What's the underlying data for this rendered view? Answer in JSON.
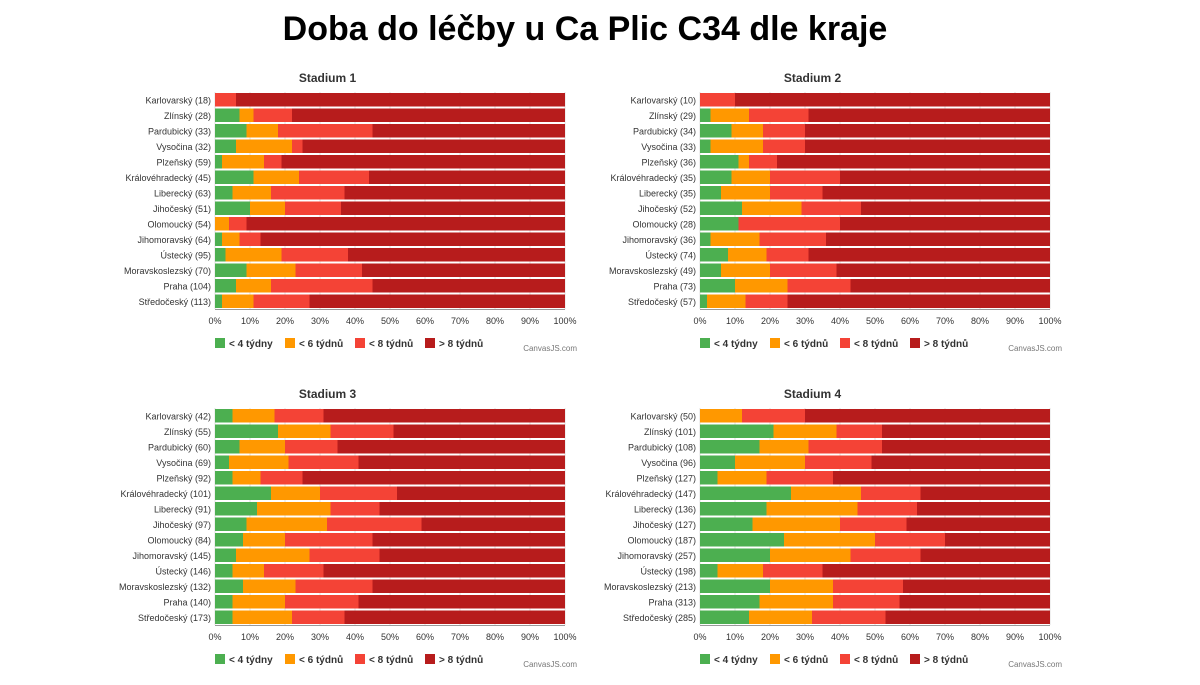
{
  "page": {
    "title": "Doba do léčby u Ca Plic C34 dle kraje"
  },
  "colors": {
    "lt4": "#4CAF50",
    "lt6": "#FF9800",
    "lt8": "#F44336",
    "gt8": "#B71C1C"
  },
  "chart_data": [
    {
      "type": "stacked-bar-100",
      "title": "Stadium 1",
      "categories": [
        "Karlovarský (18)",
        "Zlínský (28)",
        "Pardubický (33)",
        "Vysočina (32)",
        "Plzeňský (59)",
        "Královéhradecký (45)",
        "Liberecký (63)",
        "Jihočeský (51)",
        "Olomoucký (54)",
        "Jihomoravský (64)",
        "Ústecký (95)",
        "Moravskoslezský (70)",
        "Praha (104)",
        "Středočeský (113)"
      ],
      "series": [
        {
          "name": "< 4 týdny",
          "values": [
            0,
            7,
            9,
            6,
            2,
            11,
            5,
            10,
            0,
            2,
            3,
            9,
            6,
            2
          ]
        },
        {
          "name": "< 6 týdnů",
          "values": [
            0,
            4,
            9,
            16,
            12,
            13,
            11,
            10,
            4,
            5,
            16,
            14,
            10,
            9
          ]
        },
        {
          "name": "< 8 týdnů",
          "values": [
            6,
            11,
            27,
            3,
            5,
            20,
            21,
            16,
            5,
            6,
            19,
            19,
            29,
            16
          ]
        },
        {
          "name": "> 8 týdnů",
          "values": [
            94,
            78,
            55,
            75,
            81,
            56,
            63,
            64,
            91,
            87,
            62,
            58,
            55,
            73
          ]
        }
      ],
      "xlim": [
        0,
        100
      ],
      "xticks": [
        "0%",
        "10%",
        "20%",
        "30%",
        "40%",
        "50%",
        "60%",
        "70%",
        "80%",
        "90%",
        "100%"
      ],
      "credit": "CanvasJS.com"
    },
    {
      "type": "stacked-bar-100",
      "title": "Stadium 2",
      "categories": [
        "Karlovarský (10)",
        "Zlínský (29)",
        "Pardubický (34)",
        "Vysočina (33)",
        "Plzeňský (36)",
        "Královéhradecký (35)",
        "Liberecký (35)",
        "Jihočeský (52)",
        "Olomoucký (28)",
        "Jihomoravský (36)",
        "Ústecký (74)",
        "Moravskoslezský (49)",
        "Praha (73)",
        "Středočeský (57)"
      ],
      "series": [
        {
          "name": "< 4 týdny",
          "values": [
            0,
            3,
            9,
            3,
            11,
            9,
            6,
            12,
            11,
            3,
            8,
            6,
            10,
            2
          ]
        },
        {
          "name": "< 6 týdnů",
          "values": [
            0,
            11,
            9,
            15,
            3,
            11,
            14,
            17,
            0,
            14,
            11,
            14,
            15,
            11
          ]
        },
        {
          "name": "< 8 týdnů",
          "values": [
            10,
            17,
            12,
            12,
            8,
            20,
            15,
            17,
            29,
            19,
            12,
            19,
            18,
            12
          ]
        },
        {
          "name": "> 8 týdnů",
          "values": [
            90,
            69,
            70,
            70,
            78,
            60,
            65,
            54,
            60,
            64,
            69,
            61,
            57,
            75
          ]
        }
      ],
      "xlim": [
        0,
        100
      ],
      "xticks": [
        "0%",
        "10%",
        "20%",
        "30%",
        "40%",
        "50%",
        "60%",
        "70%",
        "80%",
        "90%",
        "100%"
      ],
      "credit": "CanvasJS.com"
    },
    {
      "type": "stacked-bar-100",
      "title": "Stadium 3",
      "categories": [
        "Karlovarský (42)",
        "Zlínský (55)",
        "Pardubický (60)",
        "Vysočina (69)",
        "Plzeňský (92)",
        "Královéhradecký (101)",
        "Liberecký (91)",
        "Jihočeský (97)",
        "Olomoucký (84)",
        "Jihomoravský (145)",
        "Ústecký (146)",
        "Moravskoslezský (132)",
        "Praha (140)",
        "Středočeský (173)"
      ],
      "series": [
        {
          "name": "< 4 týdny",
          "values": [
            5,
            18,
            7,
            4,
            5,
            16,
            12,
            9,
            8,
            6,
            5,
            8,
            5,
            5
          ]
        },
        {
          "name": "< 6 týdnů",
          "values": [
            12,
            15,
            13,
            17,
            8,
            14,
            21,
            23,
            12,
            21,
            9,
            15,
            15,
            17
          ]
        },
        {
          "name": "< 8 týdnů",
          "values": [
            14,
            18,
            15,
            20,
            12,
            22,
            14,
            27,
            25,
            20,
            17,
            22,
            21,
            15
          ]
        },
        {
          "name": "> 8 týdnů",
          "values": [
            69,
            49,
            65,
            59,
            75,
            48,
            53,
            41,
            55,
            53,
            69,
            55,
            59,
            63
          ]
        }
      ],
      "xlim": [
        0,
        100
      ],
      "xticks": [
        "0%",
        "10%",
        "20%",
        "30%",
        "40%",
        "50%",
        "60%",
        "70%",
        "80%",
        "90%",
        "100%"
      ],
      "credit": "CanvasJS.com"
    },
    {
      "type": "stacked-bar-100",
      "title": "Stadium 4",
      "categories": [
        "Karlovarský (50)",
        "Zlínský (101)",
        "Pardubický (108)",
        "Vysočina (96)",
        "Plzeňský (127)",
        "Královéhradecký (147)",
        "Liberecký (136)",
        "Jihočeský (127)",
        "Olomoucký (187)",
        "Jihomoravský (257)",
        "Ústecký (198)",
        "Moravskoslezský (213)",
        "Praha (313)",
        "Středočeský (285)"
      ],
      "series": [
        {
          "name": "< 4 týdny",
          "values": [
            0,
            21,
            17,
            10,
            5,
            26,
            19,
            15,
            24,
            20,
            5,
            20,
            17,
            14
          ]
        },
        {
          "name": "< 6 týdnů",
          "values": [
            12,
            18,
            14,
            20,
            14,
            20,
            26,
            25,
            26,
            23,
            13,
            18,
            21,
            18
          ]
        },
        {
          "name": "< 8 týdnů",
          "values": [
            18,
            13,
            21,
            19,
            19,
            17,
            17,
            19,
            20,
            20,
            17,
            20,
            19,
            21
          ]
        },
        {
          "name": "> 8 týdnů",
          "values": [
            70,
            48,
            48,
            51,
            62,
            37,
            38,
            41,
            30,
            37,
            65,
            42,
            43,
            47
          ]
        }
      ],
      "xlim": [
        0,
        100
      ],
      "xticks": [
        "0%",
        "10%",
        "20%",
        "30%",
        "40%",
        "50%",
        "60%",
        "70%",
        "80%",
        "90%",
        "100%"
      ],
      "credit": "CanvasJS.com"
    }
  ]
}
